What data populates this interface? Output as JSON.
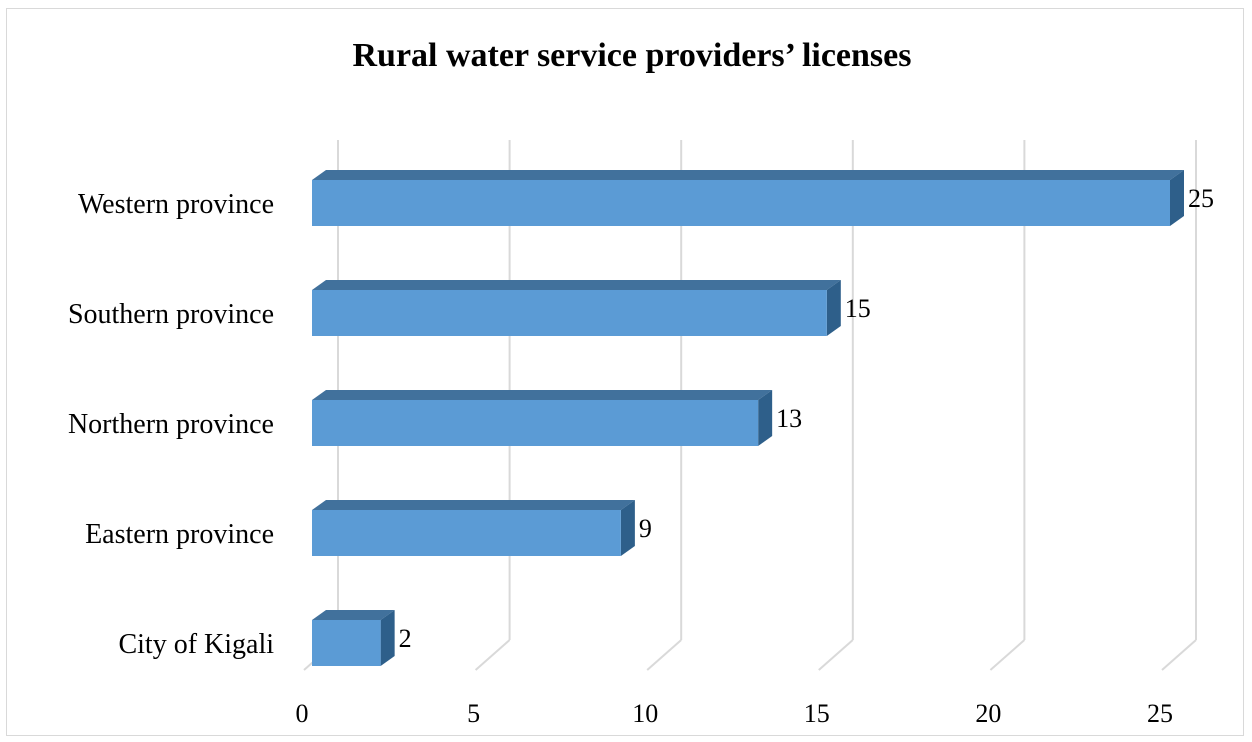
{
  "chart_data": {
    "type": "bar",
    "orientation": "horizontal",
    "title": "Rural water service providers’ licenses",
    "categories": [
      "Western province",
      "Southern province",
      "Northern province",
      "Eastern province",
      "City of Kigali"
    ],
    "series": [
      {
        "values": [
          25,
          15,
          13,
          9,
          2
        ]
      }
    ],
    "xlim": [
      0,
      25
    ],
    "xticks": [
      "0",
      "5",
      "10",
      "15",
      "20",
      "25"
    ],
    "grid": true,
    "legend": "none",
    "bar_color": "#5b9bd5",
    "bar_top_color": "#41719c",
    "bar_side_color": "#2e5f8a"
  }
}
